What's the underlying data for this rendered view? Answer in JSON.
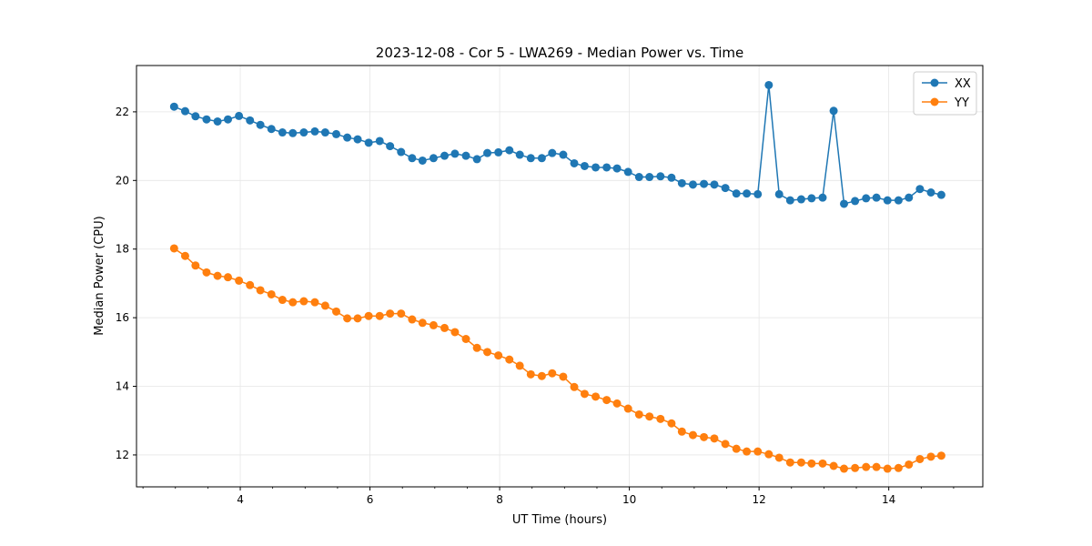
{
  "chart_data": {
    "type": "line",
    "title": "2023-12-08 - Cor 5 - LWA269 - Median Power vs. Time",
    "xlabel": "UT Time (hours)",
    "ylabel": "Median Power (CPU)",
    "xlim": [
      2.4,
      15.45
    ],
    "ylim": [
      11.07,
      23.35
    ],
    "xticks": [
      4,
      6,
      8,
      10,
      12,
      14
    ],
    "xtick_labels": [
      "4",
      "6",
      "8",
      "10",
      "12",
      "14"
    ],
    "yticks": [
      12,
      14,
      16,
      18,
      20,
      22
    ],
    "ytick_labels": [
      "12",
      "14",
      "16",
      "18",
      "20",
      "22"
    ],
    "grid": true,
    "legend_position": "top-right",
    "x": [
      2.98,
      3.15,
      3.31,
      3.48,
      3.65,
      3.81,
      3.98,
      4.15,
      4.31,
      4.48,
      4.65,
      4.81,
      4.98,
      5.15,
      5.31,
      5.48,
      5.65,
      5.81,
      5.98,
      6.15,
      6.31,
      6.48,
      6.65,
      6.81,
      6.98,
      7.15,
      7.31,
      7.48,
      7.65,
      7.81,
      7.98,
      8.15,
      8.31,
      8.48,
      8.65,
      8.81,
      8.98,
      9.15,
      9.31,
      9.48,
      9.65,
      9.81,
      9.98,
      10.15,
      10.31,
      10.48,
      10.65,
      10.81,
      10.98,
      11.15,
      11.31,
      11.48,
      11.65,
      11.81,
      11.98,
      12.15,
      12.31,
      12.48,
      12.65,
      12.81,
      12.98,
      13.15,
      13.31,
      13.48,
      13.65,
      13.81,
      13.98,
      14.15,
      14.31,
      14.48,
      14.65,
      14.81
    ],
    "series": [
      {
        "name": "XX",
        "color": "#1f77b4",
        "values": [
          22.15,
          22.02,
          21.87,
          21.78,
          21.72,
          21.78,
          21.88,
          21.75,
          21.62,
          21.5,
          21.4,
          21.38,
          21.4,
          21.43,
          21.4,
          21.35,
          21.25,
          21.2,
          21.1,
          21.15,
          21.0,
          20.83,
          20.65,
          20.58,
          20.65,
          20.72,
          20.78,
          20.72,
          20.62,
          20.8,
          20.82,
          20.88,
          20.75,
          20.65,
          20.65,
          20.8,
          20.75,
          20.5,
          20.42,
          20.38,
          20.38,
          20.35,
          20.25,
          20.1,
          20.1,
          20.12,
          20.08,
          19.92,
          19.88,
          19.9,
          19.88,
          19.78,
          19.62,
          19.62,
          19.6,
          22.78,
          19.6,
          19.42,
          19.45,
          19.48,
          19.5,
          22.03,
          19.32,
          19.4,
          19.48,
          19.5,
          19.42,
          19.42,
          19.5,
          19.75,
          19.65,
          19.58
        ]
      },
      {
        "name": "YY",
        "color": "#ff7f0e",
        "values": [
          18.02,
          17.8,
          17.52,
          17.32,
          17.22,
          17.18,
          17.08,
          16.95,
          16.8,
          16.68,
          16.52,
          16.45,
          16.48,
          16.45,
          16.35,
          16.18,
          15.98,
          15.98,
          16.05,
          16.05,
          16.12,
          16.12,
          15.95,
          15.85,
          15.78,
          15.7,
          15.58,
          15.38,
          15.12,
          15.0,
          14.9,
          14.78,
          14.6,
          14.35,
          14.3,
          14.38,
          14.28,
          13.98,
          13.78,
          13.7,
          13.6,
          13.5,
          13.35,
          13.18,
          13.12,
          13.05,
          12.92,
          12.68,
          12.58,
          12.52,
          12.48,
          12.32,
          12.18,
          12.1,
          12.1,
          12.02,
          11.92,
          11.78,
          11.78,
          11.75,
          11.75,
          11.68,
          11.6,
          11.62,
          11.65,
          11.65,
          11.6,
          11.62,
          11.72,
          11.88,
          11.95,
          11.98
        ]
      }
    ]
  }
}
